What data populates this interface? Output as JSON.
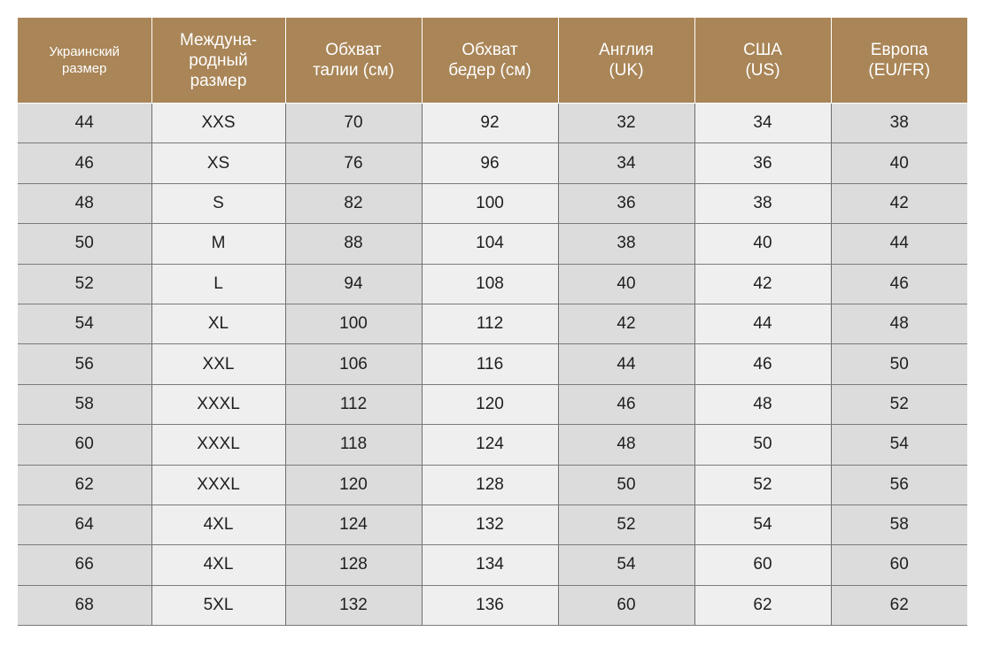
{
  "table": {
    "headers": [
      [
        "Украинский",
        "размер"
      ],
      [
        "Междуна-",
        "родный",
        "размер"
      ],
      [
        "Обхват",
        "талии (см)"
      ],
      [
        "Обхват",
        "бедер (см)"
      ],
      [
        "Англия",
        "(UK)"
      ],
      [
        "США",
        "(US)"
      ],
      [
        "Европа",
        "(EU/FR)"
      ]
    ],
    "rows": [
      [
        "44",
        "XXS",
        "70",
        "92",
        "32",
        "34",
        "38"
      ],
      [
        "46",
        "XS",
        "76",
        "96",
        "34",
        "36",
        "40"
      ],
      [
        "48",
        "S",
        "82",
        "100",
        "36",
        "38",
        "42"
      ],
      [
        "50",
        "M",
        "88",
        "104",
        "38",
        "40",
        "44"
      ],
      [
        "52",
        "L",
        "94",
        "108",
        "40",
        "42",
        "46"
      ],
      [
        "54",
        "XL",
        "100",
        "112",
        "42",
        "44",
        "48"
      ],
      [
        "56",
        "XXL",
        "106",
        "116",
        "44",
        "46",
        "50"
      ],
      [
        "58",
        "XXXL",
        "112",
        "120",
        "46",
        "48",
        "52"
      ],
      [
        "60",
        "XXXL",
        "118",
        "124",
        "48",
        "50",
        "54"
      ],
      [
        "62",
        "XXXL",
        "120",
        "128",
        "50",
        "52",
        "56"
      ],
      [
        "64",
        "4XL",
        "124",
        "132",
        "52",
        "54",
        "58"
      ],
      [
        "66",
        "4XL",
        "128",
        "134",
        "54",
        "60",
        "60"
      ],
      [
        "68",
        "5XL",
        "132",
        "136",
        "60",
        "62",
        "62"
      ]
    ],
    "colors": {
      "header_bg": "#a98557",
      "header_text": "#ffffff",
      "cell_odd_bg": "#dcdcdc",
      "cell_even_bg": "#efefef",
      "cell_text": "#1f1f1f"
    }
  }
}
